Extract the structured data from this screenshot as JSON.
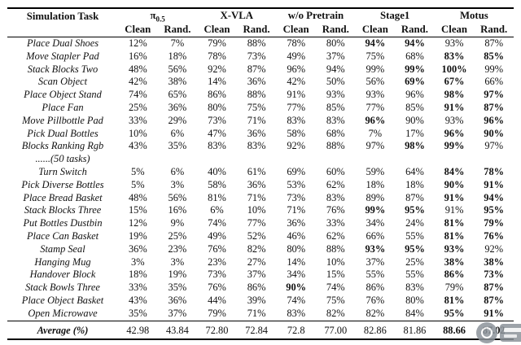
{
  "table": {
    "task_header": "Simulation Task",
    "groups": [
      {
        "label": "π",
        "sub": "0.5",
        "span": 2
      },
      {
        "label": "X-VLA",
        "span": 2
      },
      {
        "label": "w/o Pretrain",
        "span": 2
      },
      {
        "label": "Stage1",
        "span": 2
      },
      {
        "label": "Motus",
        "span": 2
      }
    ],
    "subheaders": [
      "Clean",
      "Rand.",
      "Clean",
      "Rand.",
      "Clean",
      "Rand.",
      "Clean",
      "Rand.",
      "Clean",
      "Rand."
    ],
    "rows": [
      {
        "task": "Place Dual Shoes",
        "values": [
          "12%",
          "7%",
          "79%",
          "88%",
          "78%",
          "80%",
          "94%",
          "94%",
          "93%",
          "87%"
        ],
        "bold": [
          6,
          7
        ]
      },
      {
        "task": "Move Stapler Pad",
        "values": [
          "16%",
          "18%",
          "78%",
          "73%",
          "49%",
          "37%",
          "75%",
          "68%",
          "83%",
          "85%"
        ],
        "bold": [
          8,
          9
        ]
      },
      {
        "task": "Stack Blocks Two",
        "values": [
          "48%",
          "56%",
          "92%",
          "87%",
          "96%",
          "94%",
          "99%",
          "99%",
          "100%",
          "99%"
        ],
        "bold": [
          7,
          8
        ]
      },
      {
        "task": "Scan Object",
        "values": [
          "42%",
          "38%",
          "14%",
          "36%",
          "42%",
          "50%",
          "56%",
          "69%",
          "67%",
          "66%"
        ],
        "bold": [
          7,
          8
        ]
      },
      {
        "task": "Place Object Stand",
        "values": [
          "74%",
          "65%",
          "86%",
          "88%",
          "91%",
          "93%",
          "93%",
          "96%",
          "98%",
          "97%"
        ],
        "bold": [
          8,
          9
        ]
      },
      {
        "task": "Place Fan",
        "values": [
          "25%",
          "36%",
          "80%",
          "75%",
          "77%",
          "85%",
          "77%",
          "85%",
          "91%",
          "87%"
        ],
        "bold": [
          8,
          9
        ]
      },
      {
        "task": "Move Pillbottle Pad",
        "values": [
          "33%",
          "29%",
          "73%",
          "71%",
          "83%",
          "83%",
          "96%",
          "90%",
          "93%",
          "96%"
        ],
        "bold": [
          6,
          9
        ]
      },
      {
        "task": "Pick Dual Bottles",
        "values": [
          "10%",
          "6%",
          "47%",
          "36%",
          "58%",
          "68%",
          "7%",
          "17%",
          "96%",
          "90%"
        ],
        "bold": [
          8,
          9
        ]
      },
      {
        "task": "Blocks Ranking Rgb",
        "values": [
          "43%",
          "35%",
          "83%",
          "83%",
          "92%",
          "88%",
          "97%",
          "98%",
          "99%",
          "97%"
        ],
        "bold": [
          7,
          8
        ]
      },
      {
        "task": "......(50 tasks)",
        "values": [],
        "bold": [],
        "ellipsis": true
      },
      {
        "task": "Turn Switch",
        "values": [
          "5%",
          "6%",
          "40%",
          "61%",
          "69%",
          "60%",
          "59%",
          "64%",
          "84%",
          "78%"
        ],
        "bold": [
          8,
          9
        ]
      },
      {
        "task": "Pick Diverse Bottles",
        "values": [
          "5%",
          "3%",
          "58%",
          "36%",
          "53%",
          "62%",
          "18%",
          "18%",
          "90%",
          "91%"
        ],
        "bold": [
          8,
          9
        ]
      },
      {
        "task": "Place Bread Basket",
        "values": [
          "48%",
          "56%",
          "81%",
          "71%",
          "73%",
          "83%",
          "89%",
          "87%",
          "91%",
          "94%"
        ],
        "bold": [
          8,
          9
        ]
      },
      {
        "task": "Stack Blocks Three",
        "values": [
          "15%",
          "16%",
          "6%",
          "10%",
          "71%",
          "76%",
          "99%",
          "95%",
          "91%",
          "95%"
        ],
        "bold": [
          6,
          7,
          9
        ]
      },
      {
        "task": "Put Bottles Dustbin",
        "values": [
          "12%",
          "9%",
          "74%",
          "77%",
          "36%",
          "33%",
          "34%",
          "24%",
          "81%",
          "79%"
        ],
        "bold": [
          8,
          9
        ]
      },
      {
        "task": "Place Can Basket",
        "values": [
          "19%",
          "25%",
          "49%",
          "52%",
          "46%",
          "62%",
          "66%",
          "55%",
          "81%",
          "76%"
        ],
        "bold": [
          8,
          9
        ]
      },
      {
        "task": "Stamp Seal",
        "values": [
          "36%",
          "23%",
          "76%",
          "82%",
          "80%",
          "88%",
          "93%",
          "95%",
          "93%",
          "92%"
        ],
        "bold": [
          6,
          7,
          8
        ]
      },
      {
        "task": "Hanging Mug",
        "values": [
          "3%",
          "3%",
          "23%",
          "27%",
          "14%",
          "10%",
          "37%",
          "25%",
          "38%",
          "38%"
        ],
        "bold": [
          8,
          9
        ]
      },
      {
        "task": "Handover Block",
        "values": [
          "18%",
          "19%",
          "73%",
          "37%",
          "34%",
          "15%",
          "55%",
          "55%",
          "86%",
          "73%"
        ],
        "bold": [
          8,
          9
        ]
      },
      {
        "task": "Stack Bowls Three",
        "values": [
          "33%",
          "35%",
          "76%",
          "86%",
          "90%",
          "74%",
          "86%",
          "83%",
          "79%",
          "87%"
        ],
        "bold": [
          4,
          9
        ]
      },
      {
        "task": "Place Object Basket",
        "values": [
          "43%",
          "36%",
          "44%",
          "39%",
          "74%",
          "75%",
          "76%",
          "80%",
          "81%",
          "87%"
        ],
        "bold": [
          8,
          9
        ]
      },
      {
        "task": "Open Microwave",
        "values": [
          "35%",
          "37%",
          "79%",
          "71%",
          "83%",
          "82%",
          "82%",
          "84%",
          "95%",
          "91%"
        ],
        "bold": [
          8,
          9
        ]
      }
    ],
    "average": {
      "task": "Average (%)",
      "values": [
        "42.98",
        "43.84",
        "72.80",
        "72.84",
        "72.8",
        "77.00",
        "82.86",
        "81.86",
        "88.66",
        "87.02"
      ],
      "bold": [
        8,
        9
      ]
    }
  }
}
